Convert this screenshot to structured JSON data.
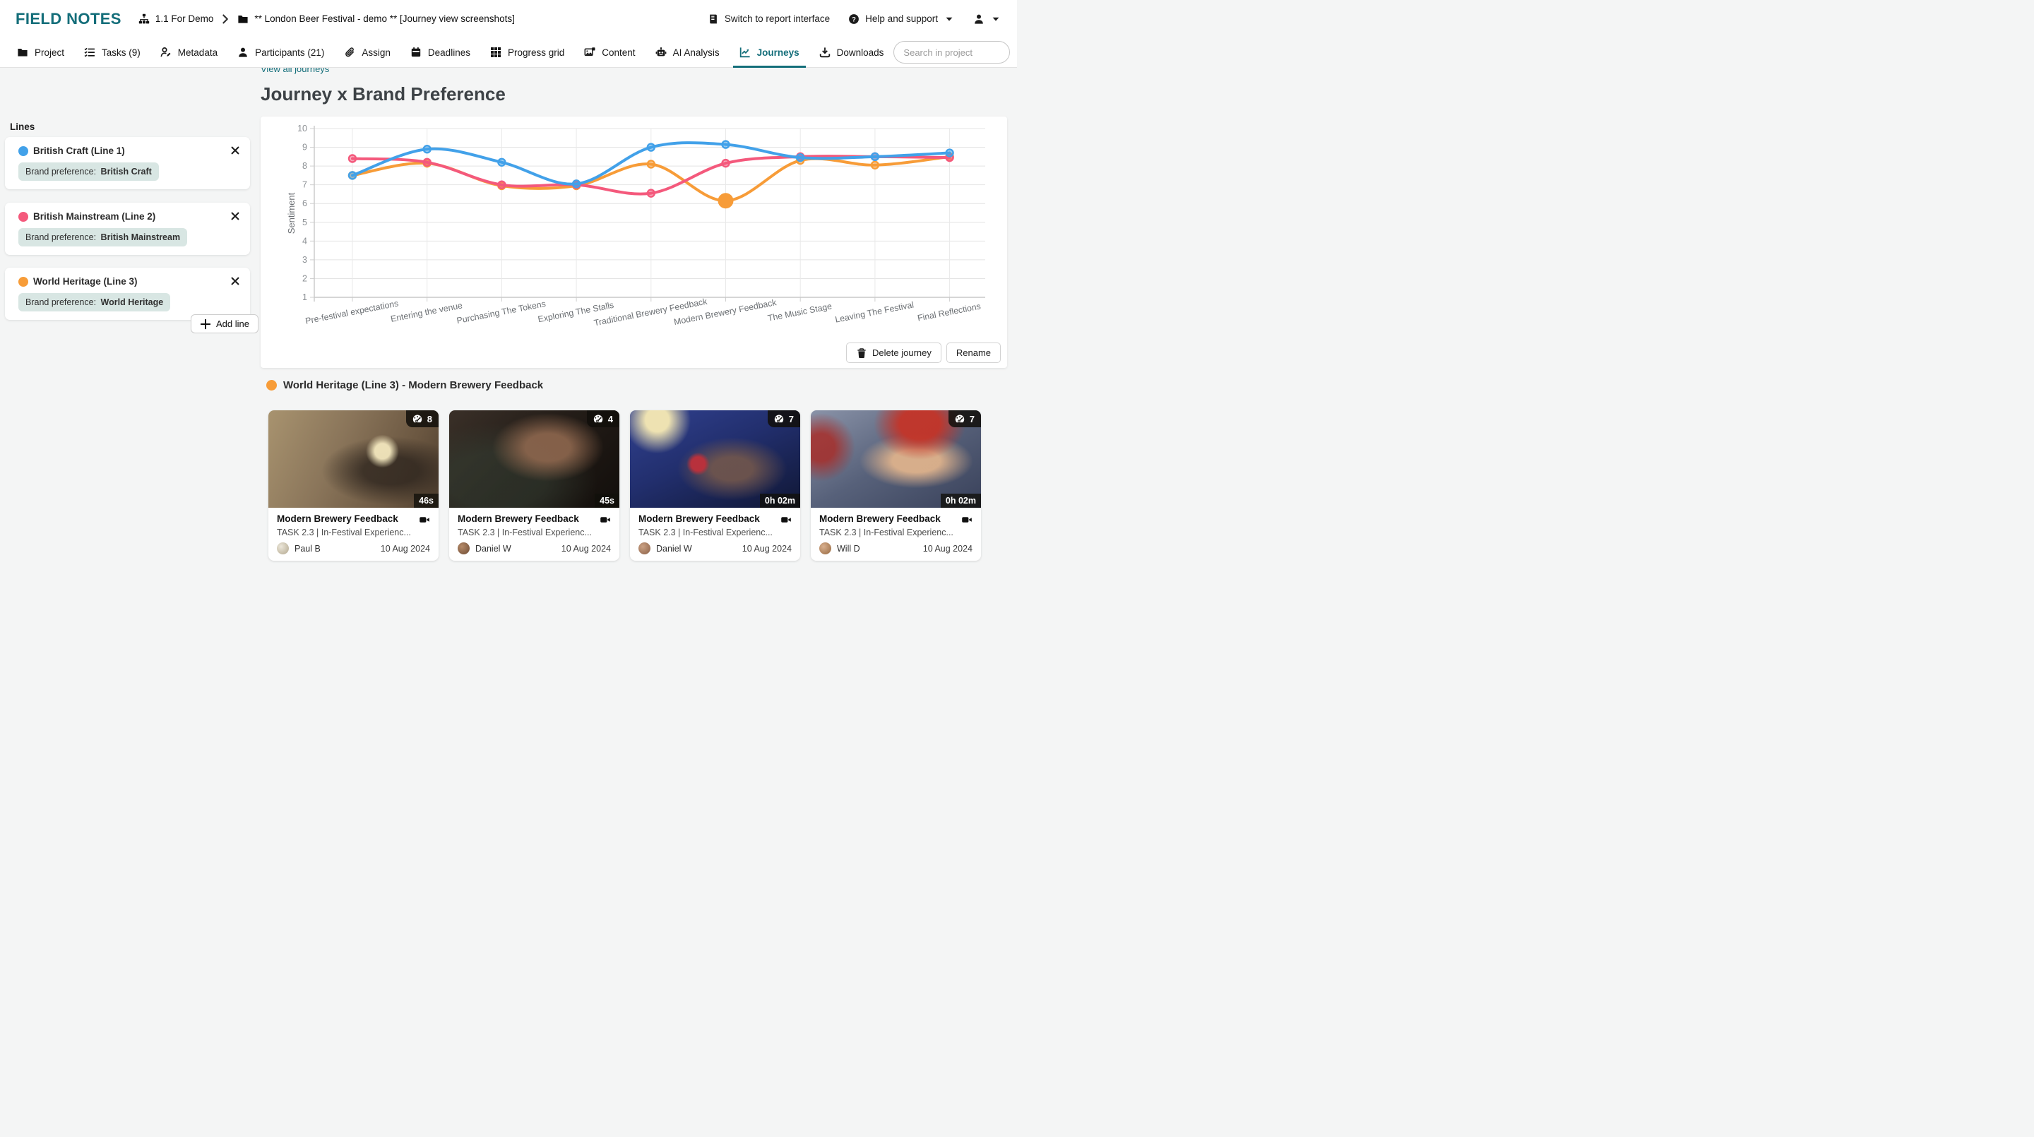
{
  "brand": {
    "logo": "FIELD NOTES",
    "teal": "#146E7A"
  },
  "header": {
    "breadcrumb": [
      {
        "icon": "sitemap-icon",
        "label": "1.1 For Demo"
      },
      {
        "icon": "folder-icon",
        "label": "** London Beer Festival - demo ** [Journey view screenshots]"
      }
    ],
    "switch_label": "Switch to report interface",
    "help_label": "Help and support"
  },
  "nav": {
    "tabs": [
      {
        "icon": "folder-icon",
        "label": "Project",
        "active": false
      },
      {
        "icon": "tasks-icon",
        "label": "Tasks (9)",
        "active": false
      },
      {
        "icon": "metadata-icon",
        "label": "Metadata",
        "active": false
      },
      {
        "icon": "participant-icon",
        "label": "Participants (21)",
        "active": false
      },
      {
        "icon": "paperclip-icon",
        "label": "Assign",
        "active": false
      },
      {
        "icon": "calendar-icon",
        "label": "Deadlines",
        "active": false
      },
      {
        "icon": "grid-icon",
        "label": "Progress grid",
        "active": false
      },
      {
        "icon": "image-icon",
        "label": "Content",
        "active": false
      },
      {
        "icon": "robot-icon",
        "label": "AI Analysis",
        "active": false
      },
      {
        "icon": "chart-line-icon",
        "label": "Journeys",
        "active": true
      },
      {
        "icon": "download-icon",
        "label": "Downloads",
        "active": false
      }
    ],
    "search_placeholder": "Search in project"
  },
  "sidebar": {
    "title": "Lines",
    "lines": [
      {
        "name": "British Craft (Line 1)",
        "color": "#42A1E9",
        "filter_label": "Brand preference:",
        "filter_value": "British Craft"
      },
      {
        "name": "British Mainstream (Line 2)",
        "color": "#F4597C",
        "filter_label": "Brand preference:",
        "filter_value": "British Mainstream"
      },
      {
        "name": "World Heritage (Line 3)",
        "color": "#F79C38",
        "filter_label": "Brand preference:",
        "filter_value": "World Heritage"
      }
    ],
    "add_line_label": "Add line"
  },
  "journey": {
    "view_all_label": "View all journeys",
    "title": "Journey x Brand Preference",
    "delete_label": "Delete journey",
    "rename_label": "Rename"
  },
  "chart_data": {
    "type": "line",
    "title": "Journey x Brand Preference",
    "ylabel": "Sentiment",
    "ylim": [
      1,
      10
    ],
    "yticks": [
      1,
      2,
      3,
      4,
      5,
      6,
      7,
      8,
      9,
      10
    ],
    "grid": true,
    "legend_position": "sidebar-cards",
    "categories": [
      "Pre-festival expectations",
      "Entering the venue",
      "Purchasing The Tokens",
      "Exploring The Stalls",
      "Traditional Brewery Feedback",
      "Modern Brewery Feedback",
      "The Music Stage",
      "Leaving The Festival",
      "Final Reflections"
    ],
    "series": [
      {
        "name": "British Craft (Line 1)",
        "color": "#42A1E9",
        "values": [
          7.5,
          8.9,
          8.2,
          7.05,
          9.0,
          9.15,
          8.45,
          8.5,
          8.7
        ]
      },
      {
        "name": "British Mainstream (Line 2)",
        "color": "#F4597C",
        "values": [
          8.4,
          8.2,
          7.0,
          7.0,
          6.55,
          8.15,
          8.5,
          8.5,
          8.45
        ]
      },
      {
        "name": "World Heritage (Line 3)",
        "color": "#F79C38",
        "values": [
          7.5,
          8.15,
          6.95,
          6.95,
          8.1,
          6.15,
          8.3,
          8.05,
          8.5
        ]
      }
    ],
    "highlight": {
      "series": "World Heritage (Line 3)",
      "category": "Modern Brewery Feedback",
      "series_index": 2,
      "point_index": 5,
      "value": 6.15
    }
  },
  "selection": {
    "heading": "World Heritage (Line 3) - Modern Brewery Feedback",
    "color": "#F79C38"
  },
  "videos": [
    {
      "score": "8",
      "duration": "46s",
      "title": "Modern Brewery Feedback",
      "task": "TASK 2.3 | In-Festival Experienc...",
      "author": "Paul B",
      "date": "10 Aug 2024"
    },
    {
      "score": "4",
      "duration": "45s",
      "title": "Modern Brewery Feedback",
      "task": "TASK 2.3 | In-Festival Experienc...",
      "author": "Daniel W",
      "date": "10 Aug 2024"
    },
    {
      "score": "7",
      "duration": "0h 02m",
      "title": "Modern Brewery Feedback",
      "task": "TASK 2.3 | In-Festival Experienc...",
      "author": "Daniel W",
      "date": "10 Aug 2024"
    },
    {
      "score": "7",
      "duration": "0h 02m",
      "title": "Modern Brewery Feedback",
      "task": "TASK 2.3 | In-Festival Experienc...",
      "author": "Will D",
      "date": "10 Aug 2024"
    }
  ]
}
